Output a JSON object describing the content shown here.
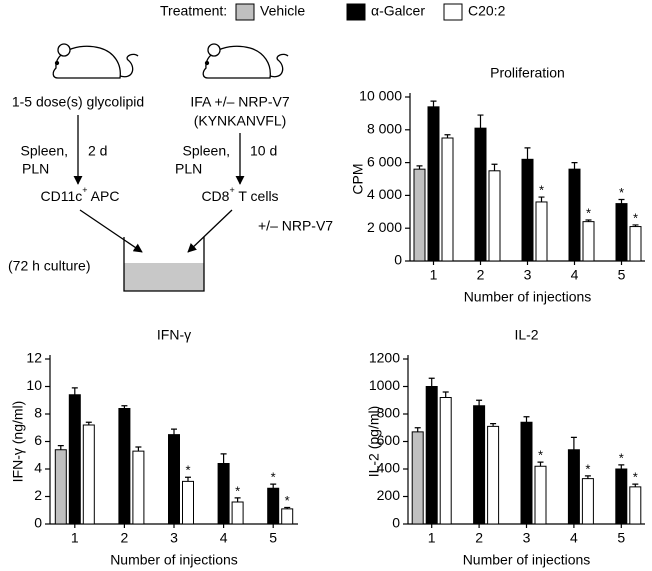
{
  "legend": {
    "title": "Treatment:"
  },
  "diagram": {
    "left_dose": "1-5 dose(s) glycolipid",
    "right_dose": "IFA +/– NRP-V7",
    "right_peptide": "(KYNKANVFL)",
    "left_organ_1": "Spleen,",
    "left_organ_2": "PLN",
    "left_time": "2 d",
    "right_organ_1": "Spleen,",
    "right_organ_2": "PLN",
    "right_time": "10 d",
    "apc": {
      "text": "CD11c",
      "sup": "+",
      "rest": " APC"
    },
    "tcells": {
      "text": "CD8",
      "sup": "+",
      "rest": " T cells"
    },
    "peptide_added": "+/– NRP-V7",
    "culture": "(72 h culture)"
  },
  "chart_data": [
    {
      "type": "bar",
      "title": "Proliferation",
      "y_label": "CPM",
      "x_label": "Number of injections",
      "categories": [
        "1",
        "2",
        "3",
        "4",
        "5"
      ],
      "ylim": [
        0,
        10000
      ],
      "yticks": [
        0,
        {
          "value": 2000,
          "label": "2 000"
        },
        {
          "value": 4000,
          "label": "4 000"
        },
        {
          "value": 6000,
          "label": "6 000"
        },
        {
          "value": 8000,
          "label": "8 000"
        },
        {
          "value": 10000,
          "label": "10 000"
        }
      ],
      "series": [
        {
          "name": "Vehicle",
          "color": "#c0c0c0",
          "values": [
            5600,
            null,
            null,
            null,
            null
          ],
          "errors": [
            200,
            null,
            null,
            null,
            null
          ],
          "significance": [
            null,
            null,
            null,
            null,
            null
          ]
        },
        {
          "name": "α-Galcer",
          "color": "#000000",
          "values": [
            9400,
            8100,
            6200,
            5600,
            3500
          ],
          "errors": [
            350,
            800,
            700,
            400,
            250
          ],
          "significance": [
            null,
            null,
            null,
            null,
            "*"
          ]
        },
        {
          "name": "C20:2",
          "color": "#ffffff",
          "values": [
            7500,
            5500,
            3600,
            2400,
            2100
          ],
          "errors": [
            200,
            400,
            300,
            100,
            100
          ],
          "significance": [
            null,
            null,
            "*",
            "*",
            "*"
          ]
        }
      ]
    },
    {
      "type": "bar",
      "title": "IFN-γ",
      "y_label": "IFN-γ (ng/ml)",
      "x_label": "Number of injections",
      "categories": [
        "1",
        "2",
        "3",
        "4",
        "5"
      ],
      "ylim": [
        0,
        12
      ],
      "yticks": [
        0,
        2,
        4,
        6,
        8,
        10,
        12
      ],
      "series": [
        {
          "name": "Vehicle",
          "color": "#c0c0c0",
          "values": [
            5.4,
            null,
            null,
            null,
            null
          ],
          "errors": [
            0.3,
            null,
            null,
            null,
            null
          ],
          "significance": [
            null,
            null,
            null,
            null,
            null
          ]
        },
        {
          "name": "α-Galcer",
          "color": "#000000",
          "values": [
            9.4,
            8.4,
            6.5,
            4.4,
            2.6
          ],
          "errors": [
            0.5,
            0.2,
            0.4,
            0.7,
            0.3
          ],
          "significance": [
            null,
            null,
            null,
            null,
            "*"
          ]
        },
        {
          "name": "C20:2",
          "color": "#ffffff",
          "values": [
            7.2,
            5.3,
            3.1,
            1.6,
            1.1
          ],
          "errors": [
            0.2,
            0.3,
            0.3,
            0.3,
            0.1
          ],
          "significance": [
            null,
            null,
            "*",
            "*",
            "*"
          ]
        }
      ]
    },
    {
      "type": "bar",
      "title": "IL-2",
      "y_label": "IL-2 (pg/ml)",
      "x_label": "Number of injections",
      "categories": [
        "1",
        "2",
        "3",
        "4",
        "5"
      ],
      "ylim": [
        0,
        1200
      ],
      "yticks": [
        0,
        200,
        400,
        600,
        800,
        1000,
        1200
      ],
      "series": [
        {
          "name": "Vehicle",
          "color": "#c0c0c0",
          "values": [
            670,
            null,
            null,
            null,
            null
          ],
          "errors": [
            30,
            null,
            null,
            null,
            null
          ],
          "significance": [
            null,
            null,
            null,
            null,
            null
          ]
        },
        {
          "name": "α-Galcer",
          "color": "#000000",
          "values": [
            1000,
            860,
            740,
            540,
            400
          ],
          "errors": [
            60,
            40,
            40,
            90,
            30
          ],
          "significance": [
            null,
            null,
            null,
            null,
            "*"
          ]
        },
        {
          "name": "C20:2",
          "color": "#ffffff",
          "values": [
            920,
            710,
            420,
            330,
            270
          ],
          "errors": [
            40,
            20,
            30,
            20,
            20
          ],
          "significance": [
            null,
            null,
            "*",
            "*",
            "*"
          ]
        }
      ]
    }
  ]
}
